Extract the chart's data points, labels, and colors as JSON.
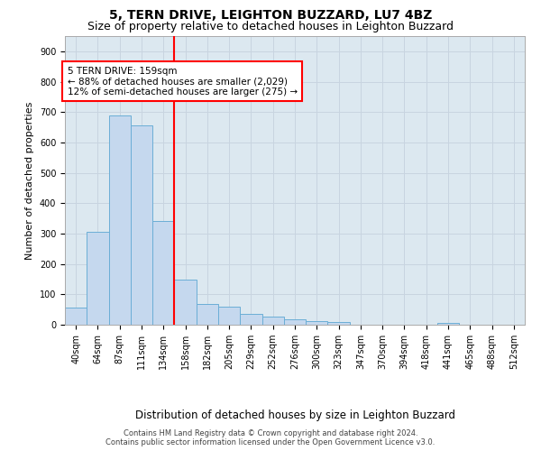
{
  "title": "5, TERN DRIVE, LEIGHTON BUZZARD, LU7 4BZ",
  "subtitle": "Size of property relative to detached houses in Leighton Buzzard",
  "xlabel": "Distribution of detached houses by size in Leighton Buzzard",
  "ylabel": "Number of detached properties",
  "categories": [
    "40sqm",
    "64sqm",
    "87sqm",
    "111sqm",
    "134sqm",
    "158sqm",
    "182sqm",
    "205sqm",
    "229sqm",
    "252sqm",
    "276sqm",
    "300sqm",
    "323sqm",
    "347sqm",
    "370sqm",
    "394sqm",
    "418sqm",
    "441sqm",
    "465sqm",
    "488sqm",
    "512sqm"
  ],
  "values": [
    55,
    307,
    688,
    655,
    340,
    148,
    68,
    60,
    35,
    27,
    17,
    12,
    10,
    0,
    0,
    0,
    0,
    7,
    0,
    0,
    0
  ],
  "bar_color": "#c5d8ee",
  "bar_edge_color": "#6baed6",
  "property_line_label": "5 TERN DRIVE: 159sqm",
  "annotation_line1": "← 88% of detached houses are smaller (2,029)",
  "annotation_line2": "12% of semi-detached houses are larger (275) →",
  "annotation_box_color": "white",
  "annotation_box_edge_color": "red",
  "vline_color": "red",
  "vline_x": 4.5,
  "ylim": [
    0,
    950
  ],
  "yticks": [
    0,
    100,
    200,
    300,
    400,
    500,
    600,
    700,
    800,
    900
  ],
  "grid_color": "#c8d4e0",
  "background_color": "#dce8f0",
  "footer_line1": "Contains HM Land Registry data © Crown copyright and database right 2024.",
  "footer_line2": "Contains public sector information licensed under the Open Government Licence v3.0.",
  "title_fontsize": 10,
  "subtitle_fontsize": 9,
  "tick_fontsize": 7,
  "ylabel_fontsize": 8,
  "xlabel_fontsize": 8.5,
  "annotation_fontsize": 7.5,
  "footer_fontsize": 6
}
